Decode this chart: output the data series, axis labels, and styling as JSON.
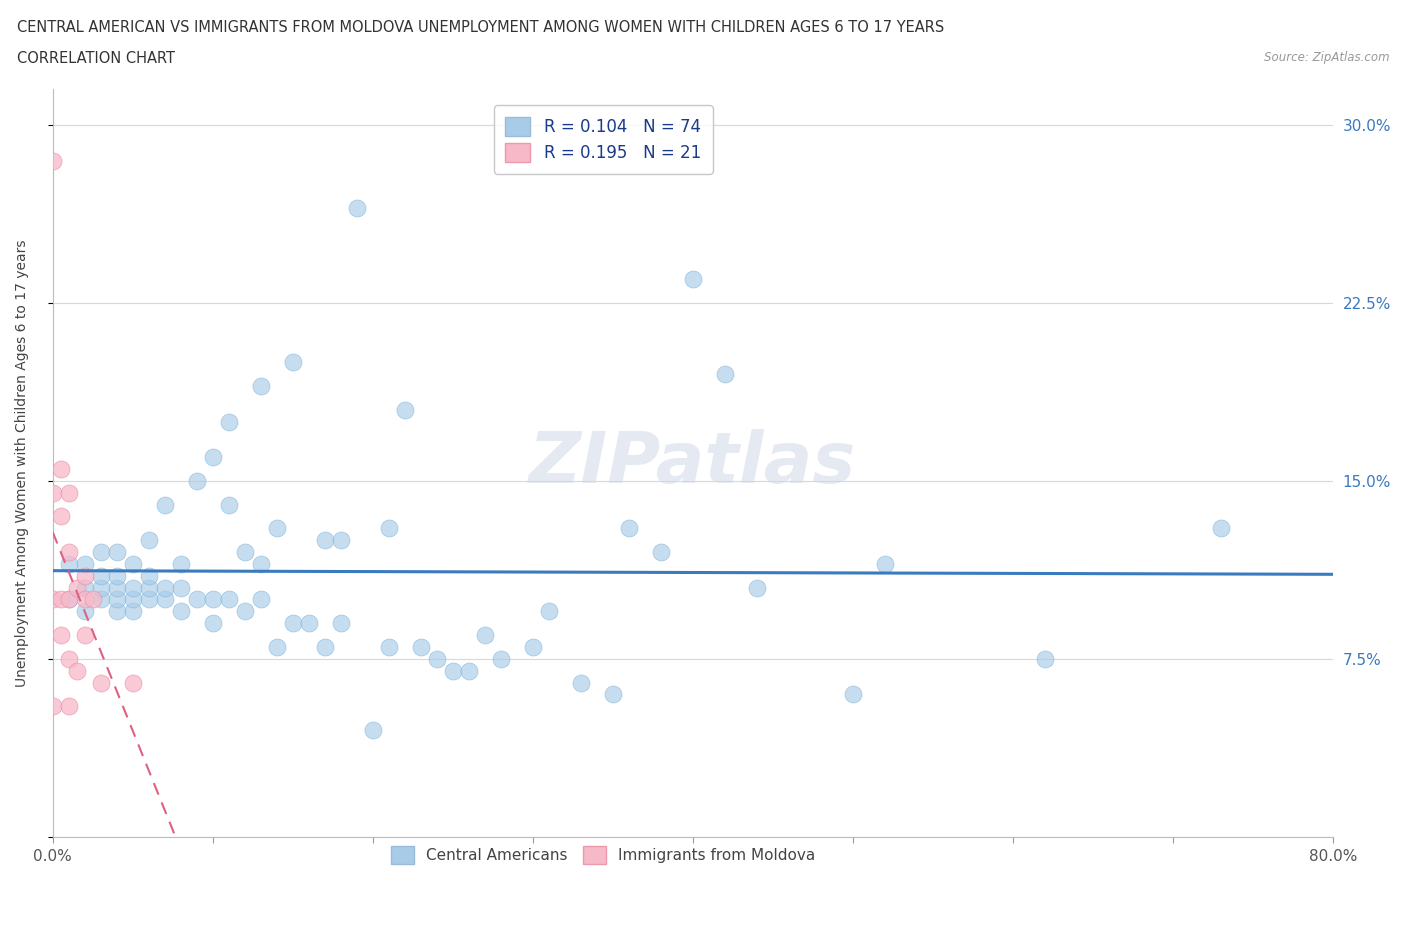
{
  "title_line1": "CENTRAL AMERICAN VS IMMIGRANTS FROM MOLDOVA UNEMPLOYMENT AMONG WOMEN WITH CHILDREN AGES 6 TO 17 YEARS",
  "title_line2": "CORRELATION CHART",
  "source": "Source: ZipAtlas.com",
  "ylabel": "Unemployment Among Women with Children Ages 6 to 17 years",
  "xlim": [
    0,
    0.8
  ],
  "ylim": [
    0,
    0.315
  ],
  "xticks": [
    0.0,
    0.1,
    0.2,
    0.3,
    0.4,
    0.5,
    0.6,
    0.7,
    0.8
  ],
  "xticklabels": [
    "0.0%",
    "",
    "",
    "",
    "",
    "",
    "",
    "",
    "80.0%"
  ],
  "yticks": [
    0.0,
    0.075,
    0.15,
    0.225,
    0.3
  ],
  "ylabels_left": [
    "",
    "",
    "",
    "",
    ""
  ],
  "ylabels_right": [
    "",
    "7.5%",
    "15.0%",
    "22.5%",
    "30.0%"
  ],
  "blue_R": 0.104,
  "blue_N": 74,
  "pink_R": 0.195,
  "pink_N": 21,
  "blue_color": "#a8cce8",
  "pink_color": "#f7b8c8",
  "blue_line_color": "#3a7abf",
  "pink_line_color": "#e06080",
  "watermark": "ZIPatlas",
  "blue_scatter_x": [
    0.01,
    0.01,
    0.02,
    0.02,
    0.02,
    0.03,
    0.03,
    0.03,
    0.03,
    0.04,
    0.04,
    0.04,
    0.04,
    0.04,
    0.05,
    0.05,
    0.05,
    0.05,
    0.06,
    0.06,
    0.06,
    0.06,
    0.07,
    0.07,
    0.07,
    0.08,
    0.08,
    0.08,
    0.09,
    0.09,
    0.1,
    0.1,
    0.1,
    0.11,
    0.11,
    0.11,
    0.12,
    0.12,
    0.13,
    0.13,
    0.13,
    0.14,
    0.14,
    0.15,
    0.15,
    0.16,
    0.17,
    0.17,
    0.18,
    0.18,
    0.19,
    0.2,
    0.21,
    0.21,
    0.22,
    0.23,
    0.24,
    0.25,
    0.26,
    0.27,
    0.28,
    0.3,
    0.31,
    0.33,
    0.35,
    0.36,
    0.38,
    0.4,
    0.42,
    0.44,
    0.5,
    0.52,
    0.62,
    0.73
  ],
  "blue_scatter_y": [
    0.115,
    0.1,
    0.095,
    0.105,
    0.115,
    0.1,
    0.105,
    0.11,
    0.12,
    0.095,
    0.1,
    0.105,
    0.11,
    0.12,
    0.095,
    0.1,
    0.105,
    0.115,
    0.1,
    0.105,
    0.11,
    0.125,
    0.1,
    0.105,
    0.14,
    0.095,
    0.105,
    0.115,
    0.1,
    0.15,
    0.09,
    0.1,
    0.16,
    0.1,
    0.14,
    0.175,
    0.095,
    0.12,
    0.1,
    0.115,
    0.19,
    0.08,
    0.13,
    0.09,
    0.2,
    0.09,
    0.125,
    0.08,
    0.09,
    0.125,
    0.265,
    0.045,
    0.08,
    0.13,
    0.18,
    0.08,
    0.075,
    0.07,
    0.07,
    0.085,
    0.075,
    0.08,
    0.095,
    0.065,
    0.06,
    0.13,
    0.12,
    0.235,
    0.195,
    0.105,
    0.06,
    0.115,
    0.075,
    0.13
  ],
  "pink_scatter_x": [
    0.0,
    0.0,
    0.0,
    0.0,
    0.005,
    0.005,
    0.005,
    0.005,
    0.01,
    0.01,
    0.01,
    0.01,
    0.01,
    0.015,
    0.015,
    0.02,
    0.02,
    0.02,
    0.025,
    0.03,
    0.05
  ],
  "pink_scatter_y": [
    0.285,
    0.145,
    0.1,
    0.055,
    0.135,
    0.155,
    0.1,
    0.085,
    0.145,
    0.12,
    0.1,
    0.075,
    0.055,
    0.105,
    0.07,
    0.11,
    0.1,
    0.085,
    0.1,
    0.065,
    0.065
  ]
}
